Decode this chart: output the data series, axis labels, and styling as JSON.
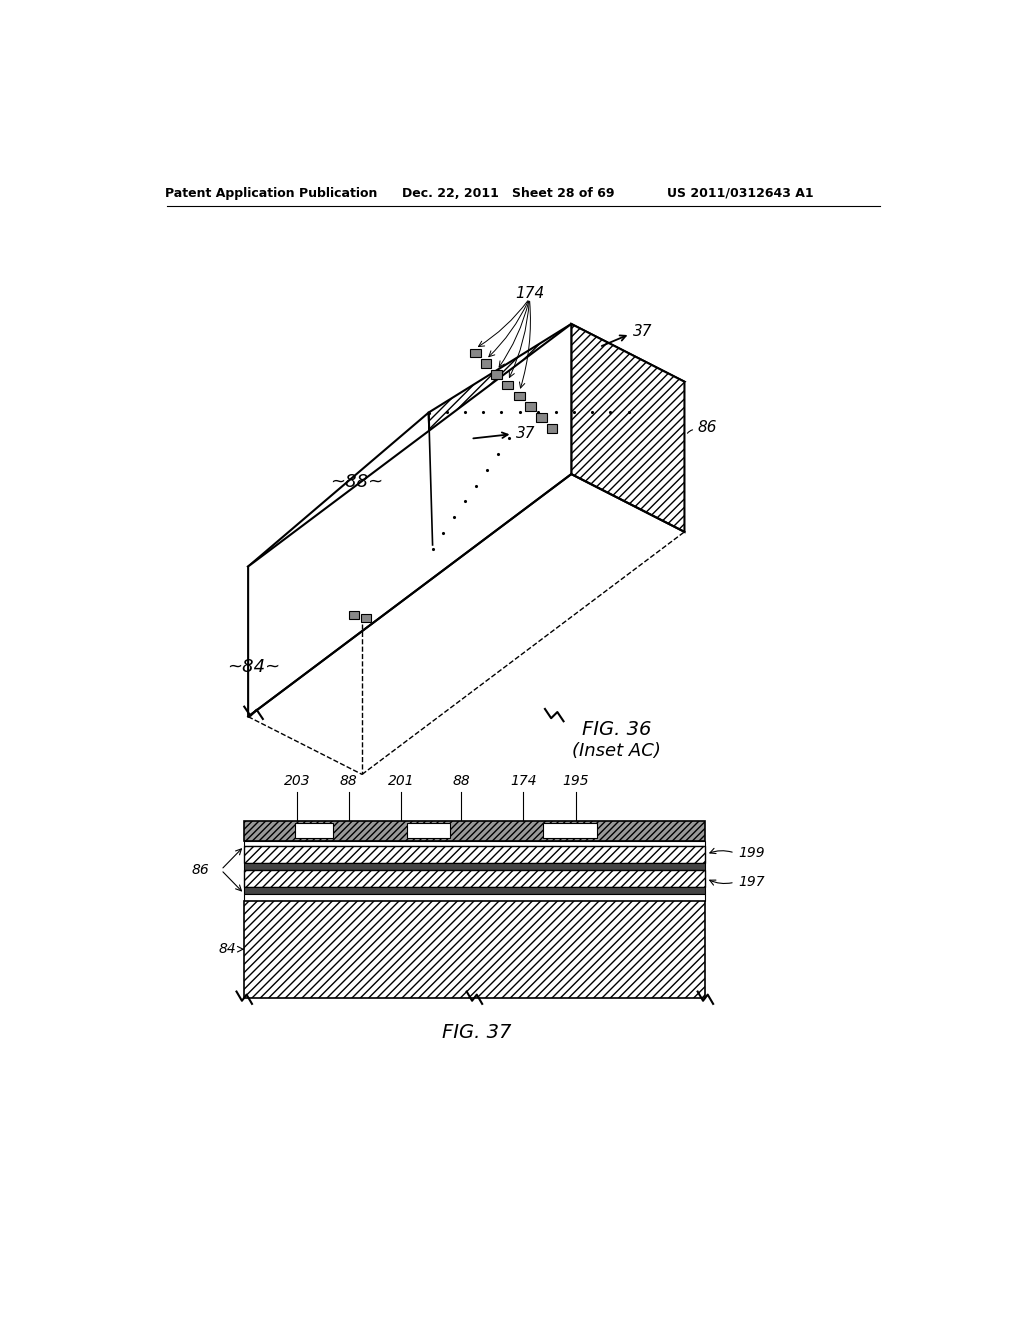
{
  "background_color": "#ffffff",
  "header_left": "Patent Application Publication",
  "header_center": "Dec. 22, 2011   Sheet 28 of 69",
  "header_right": "US 2011/0312643 A1",
  "fig36_title": "FIG. 36",
  "fig36_subtitle": "(Inset AC)",
  "fig37_title": "FIG. 37",
  "label_174": "174",
  "label_37a": "37",
  "label_37b": "37",
  "label_86a": "86",
  "label_88": "~88~",
  "label_84a": "~84~",
  "label_203": "203",
  "label_88b": "88",
  "label_201": "201",
  "label_88c": "88",
  "label_174b": "174",
  "label_195": "195",
  "label_199": "199",
  "label_197": "197",
  "label_86b": "86",
  "label_84b": "84"
}
